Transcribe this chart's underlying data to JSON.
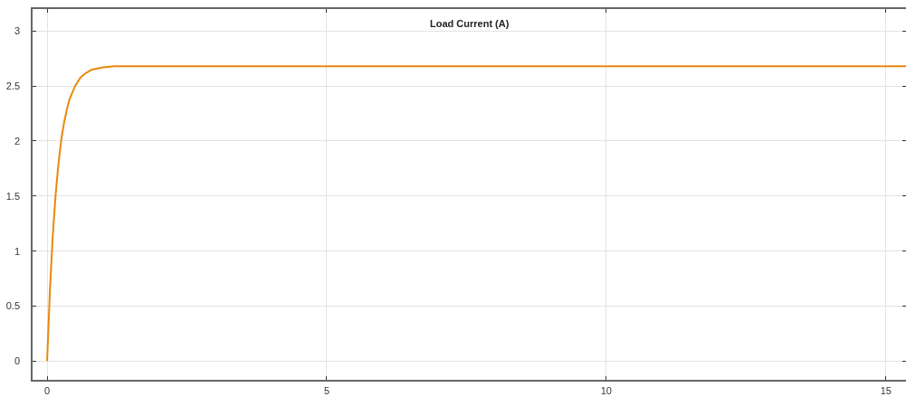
{
  "chart_data": {
    "type": "line",
    "title": "Load Current (A)",
    "x": [
      0,
      0.05,
      0.1,
      0.15,
      0.2,
      0.25,
      0.3,
      0.35,
      0.4,
      0.5,
      0.6,
      0.7,
      0.8,
      0.9,
      1.0,
      1.2,
      1.5,
      2,
      3,
      4,
      5,
      6,
      7,
      8,
      9,
      10,
      11,
      12,
      13,
      14,
      15,
      15.36
    ],
    "series": [
      {
        "color": "#e8890c",
        "values": [
          0,
          0.64,
          1.13,
          1.5,
          1.78,
          2.0,
          2.16,
          2.28,
          2.38,
          2.5,
          2.58,
          2.62,
          2.65,
          2.66,
          2.67,
          2.68,
          2.68,
          2.68,
          2.68,
          2.68,
          2.68,
          2.68,
          2.68,
          2.68,
          2.68,
          2.68,
          2.68,
          2.68,
          2.68,
          2.68,
          2.68,
          2.68
        ]
      }
    ],
    "xlim": [
      -0.26,
      15.36
    ],
    "ylim": [
      -0.17,
      3.2
    ],
    "xticks": [
      0,
      5,
      10,
      15
    ],
    "yticks": [
      0,
      0.5,
      1,
      1.5,
      2,
      2.5,
      3
    ],
    "grid": true,
    "legend": false,
    "marker": "none",
    "line_style": "solid"
  }
}
